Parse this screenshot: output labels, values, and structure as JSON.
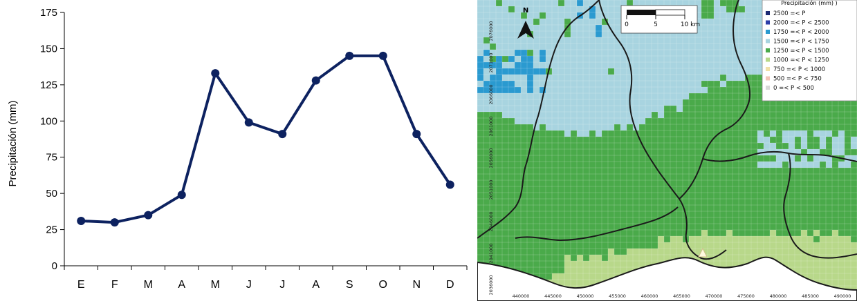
{
  "chart_data": [
    {
      "type": "line",
      "categories": [
        "E",
        "F",
        "M",
        "A",
        "M",
        "J",
        "J",
        "A",
        "S",
        "O",
        "N",
        "D"
      ],
      "values": [
        31,
        30,
        35,
        49,
        133,
        99,
        91,
        128,
        145,
        145,
        91,
        56
      ],
      "ylabel": "Precipitación (mm)",
      "xlabel": "",
      "ylim": [
        0,
        175
      ],
      "yticks": [
        0,
        25,
        50,
        75,
        100,
        125,
        150,
        175
      ],
      "grid": false,
      "line_color": "#0d2260"
    },
    {
      "type": "heatmap",
      "legend": {
        "title": "Precipitación (mm) )",
        "entries": [
          {
            "label": "2500  =<  P",
            "color": "#1c2a72"
          },
          {
            "label": "2000  =<  P  <  2500",
            "color": "#2c3ea8"
          },
          {
            "label": "1750  =<  P  <  2000",
            "color": "#2a9ad0"
          },
          {
            "label": "1500  =<  P  <  1750",
            "color": "#a8d4e0"
          },
          {
            "label": "1250  =<  P  <  1500",
            "color": "#4aaa4a"
          },
          {
            "label": "1000  =<  P  <  1250",
            "color": "#b8d88a"
          },
          {
            "label": "750  =<  P  <  1000",
            "color": "#f2e0a8"
          },
          {
            "label": "500  =<  P  <    750",
            "color": "#f2c4b8"
          },
          {
            "label": "0  =<  P  <    500",
            "color": "#d8d8d8"
          }
        ]
      },
      "north_label": "N",
      "scale_labels": [
        "0",
        "5",
        "10  km"
      ],
      "x_ticks": [
        "440000",
        "445000",
        "450000",
        "455000",
        "460000",
        "465000",
        "470000",
        "475000",
        "480000",
        "485000",
        "490000"
      ],
      "y_ticks": [
        "2076000",
        "2071000",
        "2066000",
        "2061000",
        "2056000",
        "2051000",
        "2046000",
        "2041000",
        "2036000"
      ],
      "colors": {
        "light_blue": "#a8d4e0",
        "blue": "#2a9ad0",
        "green": "#4aaa4a",
        "light_green": "#b8d88a",
        "boundary": "#1a1a1a"
      }
    }
  ]
}
